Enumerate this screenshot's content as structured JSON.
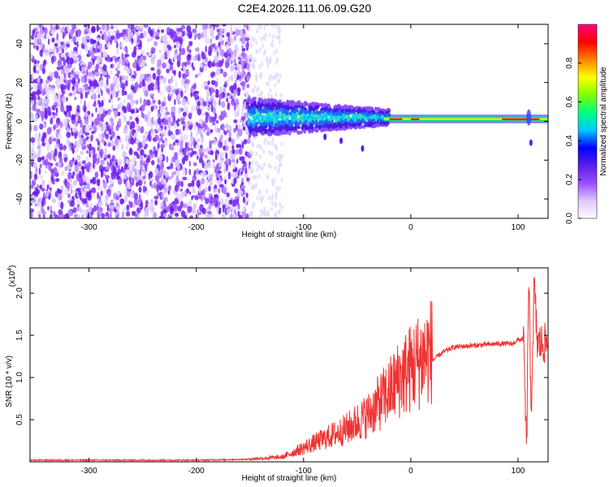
{
  "title": "C2E4.2026.111.06.09.G20",
  "chart_data": [
    {
      "type": "heatmap",
      "xlabel": "Height of straight line (km)",
      "ylabel": "Frequency (Hz)",
      "xlim": [
        -355,
        128
      ],
      "ylim": [
        -50,
        50
      ],
      "xticks": [
        -300,
        -200,
        -100,
        0,
        100
      ],
      "yticks": [
        -40,
        -20,
        0,
        20,
        40
      ],
      "colorbar": {
        "label": "Normalized spectral amplitude",
        "range": [
          0,
          1
        ],
        "ticks": [
          "0.0",
          "0.2",
          "0.4",
          "0.6",
          "0.8"
        ],
        "colors": [
          "#ffffff",
          "#dcc8ff",
          "#9b4dff",
          "#5a1ee8",
          "#0000ff",
          "#00c8ff",
          "#00ff80",
          "#80ff00",
          "#ffff00",
          "#ff8000",
          "#ff0000",
          "#ff0080"
        ]
      },
      "regions": [
        {
          "x_range": [
            -355,
            -150
          ],
          "freq_range": [
            -50,
            50
          ],
          "amplitude": "low, broadband noise"
        },
        {
          "x_range": [
            -150,
            -20
          ],
          "freq_range": [
            -10,
            12
          ],
          "amplitude": "0.3-0.5"
        },
        {
          "x_range": [
            -20,
            128
          ],
          "freq_center": 1,
          "amplitude": "0.6-0.9"
        }
      ]
    },
    {
      "type": "line",
      "xlabel": "Height of straight line (km)",
      "ylabel": "SNR (10 * v/v)",
      "multiplier": "(x10",
      "multiplier_exp": "4",
      "multiplier_close": ")",
      "xlim": [
        -355,
        128
      ],
      "ylim": [
        0,
        2.3
      ],
      "xticks": [
        -300,
        -200,
        -100,
        0,
        100
      ],
      "yticks": [
        "0.5",
        "1.0",
        "1.5",
        "2.0"
      ],
      "color": "#ee3333",
      "series": [
        {
          "x": [
            -355,
            -300,
            -250,
            -200,
            -150,
            -120,
            -100,
            -80,
            -60,
            -40,
            -20,
            -10,
            0,
            10,
            20,
            30,
            40,
            60,
            80,
            95,
            100,
            105,
            108,
            110,
            112,
            115,
            118,
            122,
            128
          ],
          "y": [
            0.02,
            0.02,
            0.02,
            0.02,
            0.03,
            0.05,
            0.15,
            0.25,
            0.35,
            0.5,
            0.75,
            0.9,
            1.0,
            1.1,
            1.2,
            1.3,
            1.36,
            1.38,
            1.4,
            1.4,
            1.45,
            1.45,
            0.1,
            2.3,
            0.5,
            2.1,
            1.4,
            1.4,
            1.4
          ]
        }
      ]
    }
  ]
}
